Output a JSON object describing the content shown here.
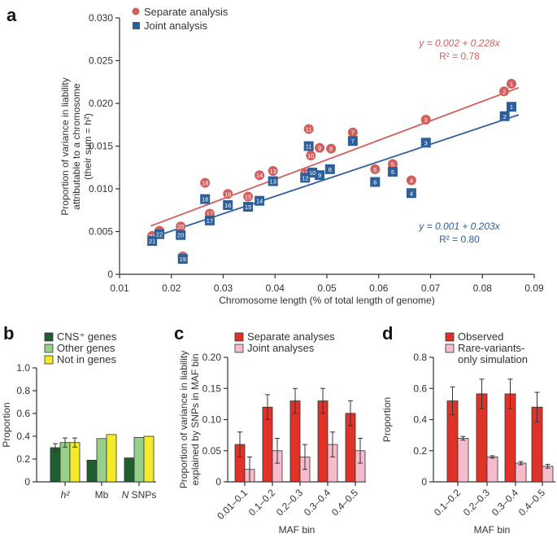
{
  "colors": {
    "separate": "#d0605e",
    "joint": "#2d5f9a",
    "cns": "#1f5e2e",
    "other_genes": "#97d08b",
    "not_in_genes": "#f2ea2a",
    "red_bar": "#e03228",
    "pink_bar": "#f5bccb",
    "axis": "#333333"
  },
  "chart_data": [
    {
      "id": "a",
      "panel_letter": "a",
      "type": "scatter",
      "title": "",
      "xlabel": "Chromosome length (% of total length of genome)",
      "ylabel_lines": [
        "Proportion of variance in liability",
        "attributable to a chromosome",
        "(their sum = h²)"
      ],
      "xlim": [
        0.01,
        0.09
      ],
      "ylim": [
        0,
        0.03
      ],
      "xticks": [
        0.01,
        0.02,
        0.03,
        0.04,
        0.05,
        0.06,
        0.07,
        0.08,
        0.09
      ],
      "xtick_labels": [
        "0.01",
        "0.02",
        "0.03",
        "0.04",
        "0.05",
        "0.06",
        "0.07",
        "0.08",
        "0.09"
      ],
      "yticks": [
        0,
        0.005,
        0.01,
        0.015,
        0.02,
        0.025,
        0.03
      ],
      "ytick_labels": [
        "0",
        "0.005",
        "0.010",
        "0.015",
        "0.020",
        "0.025",
        "0.030"
      ],
      "legend": {
        "placement": "top-left",
        "entries": [
          "Separate analysis",
          "Joint analysis"
        ]
      },
      "grid": false,
      "series": [
        {
          "name": "Separate analysis",
          "marker": "circle",
          "fit": {
            "intercept": 0.002,
            "slope": 0.228,
            "x_range": [
              0.016,
              0.087
            ],
            "equation": "y = 0.002 + 0.228x",
            "r2_label": "R² = 0.78"
          },
          "points": [
            {
              "label": "1",
              "x": 0.0856,
              "y": 0.0223
            },
            {
              "label": "2",
              "x": 0.0842,
              "y": 0.0214
            },
            {
              "label": "3",
              "x": 0.0691,
              "y": 0.0181
            },
            {
              "label": "4",
              "x": 0.0663,
              "y": 0.011
            },
            {
              "label": "5",
              "x": 0.0627,
              "y": 0.0129
            },
            {
              "label": "6",
              "x": 0.0593,
              "y": 0.0123
            },
            {
              "label": "7",
              "x": 0.055,
              "y": 0.0166
            },
            {
              "label": "8",
              "x": 0.0508,
              "y": 0.0147
            },
            {
              "label": "9",
              "x": 0.0486,
              "y": 0.0148
            },
            {
              "label": "10",
              "x": 0.0469,
              "y": 0.0139
            },
            {
              "label": "11",
              "x": 0.0465,
              "y": 0.017
            },
            {
              "label": "12",
              "x": 0.0458,
              "y": 0.0118
            },
            {
              "label": "13",
              "x": 0.0396,
              "y": 0.0121
            },
            {
              "label": "14",
              "x": 0.037,
              "y": 0.0116
            },
            {
              "label": "15",
              "x": 0.0348,
              "y": 0.0091
            },
            {
              "label": "16",
              "x": 0.0309,
              "y": 0.0094
            },
            {
              "label": "17",
              "x": 0.0274,
              "y": 0.0071
            },
            {
              "label": "18",
              "x": 0.0265,
              "y": 0.0107
            },
            {
              "label": "19",
              "x": 0.0222,
              "y": 0.0021
            },
            {
              "label": "20",
              "x": 0.0218,
              "y": 0.0056
            },
            {
              "label": "21",
              "x": 0.0163,
              "y": 0.0045
            },
            {
              "label": "22",
              "x": 0.0177,
              "y": 0.0051
            }
          ]
        },
        {
          "name": "Joint analysis",
          "marker": "square",
          "fit": {
            "intercept": 0.001,
            "slope": 0.203,
            "x_range": [
              0.016,
              0.087
            ],
            "equation": "y = 0.001 + 0.203x",
            "r2_label": "R² = 0.80"
          },
          "points": [
            {
              "label": "1",
              "x": 0.0856,
              "y": 0.0196
            },
            {
              "label": "2",
              "x": 0.0843,
              "y": 0.0185
            },
            {
              "label": "3",
              "x": 0.0691,
              "y": 0.0154
            },
            {
              "label": "4",
              "x": 0.0663,
              "y": 0.0095
            },
            {
              "label": "5",
              "x": 0.0627,
              "y": 0.012
            },
            {
              "label": "6",
              "x": 0.0593,
              "y": 0.0108
            },
            {
              "label": "7",
              "x": 0.055,
              "y": 0.0156
            },
            {
              "label": "8",
              "x": 0.0506,
              "y": 0.0123
            },
            {
              "label": "9",
              "x": 0.0486,
              "y": 0.0116
            },
            {
              "label": "10",
              "x": 0.0472,
              "y": 0.0119
            },
            {
              "label": "11",
              "x": 0.0465,
              "y": 0.015
            },
            {
              "label": "12",
              "x": 0.0458,
              "y": 0.0113
            },
            {
              "label": "13",
              "x": 0.0396,
              "y": 0.0109
            },
            {
              "label": "14",
              "x": 0.037,
              "y": 0.0086
            },
            {
              "label": "15",
              "x": 0.0348,
              "y": 0.0079
            },
            {
              "label": "16",
              "x": 0.0309,
              "y": 0.0081
            },
            {
              "label": "17",
              "x": 0.0274,
              "y": 0.0063
            },
            {
              "label": "18",
              "x": 0.0265,
              "y": 0.0088
            },
            {
              "label": "19",
              "x": 0.0222,
              "y": 0.0018
            },
            {
              "label": "20",
              "x": 0.0218,
              "y": 0.0046
            },
            {
              "label": "21",
              "x": 0.0163,
              "y": 0.0039
            },
            {
              "label": "22",
              "x": 0.0177,
              "y": 0.0047
            }
          ]
        }
      ]
    },
    {
      "id": "b",
      "panel_letter": "b",
      "type": "bar",
      "ylabel": "Proportion",
      "xlabel": "",
      "ylim": [
        0,
        1.0
      ],
      "yticks": [
        0,
        0.2,
        0.4,
        0.6,
        0.8,
        1.0
      ],
      "ytick_labels": [
        "0",
        "0.2",
        "0.4",
        "0.6",
        "0.8",
        "1.0"
      ],
      "categories": [
        "h²",
        "Mb",
        "N SNPs"
      ],
      "legend": {
        "placement": "top",
        "entries": [
          "CNS⁺ genes",
          "Other genes",
          "Not in genes"
        ]
      },
      "series": [
        {
          "name": "CNS⁺ genes",
          "color_key": "cns",
          "values": [
            0.3,
            0.19,
            0.21
          ],
          "errors": [
            0.035,
            null,
            null
          ]
        },
        {
          "name": "Other genes",
          "color_key": "other_genes",
          "values": [
            0.345,
            0.38,
            0.39
          ],
          "errors": [
            0.04,
            null,
            null
          ]
        },
        {
          "name": "Not in genes",
          "color_key": "not_in_genes",
          "values": [
            0.345,
            0.415,
            0.4
          ],
          "errors": [
            0.04,
            null,
            null
          ]
        }
      ]
    },
    {
      "id": "c",
      "panel_letter": "c",
      "type": "bar",
      "ylabel_lines": [
        "Proportion of variance in liability",
        "explained by SNPs in MAF bin"
      ],
      "xlabel": "MAF bin",
      "ylim": [
        0,
        0.2
      ],
      "yticks": [
        0,
        0.05,
        0.1,
        0.15,
        0.2
      ],
      "ytick_labels": [
        "0",
        "0.05",
        "0.10",
        "0.15",
        "0.20"
      ],
      "categories": [
        "0.01–0.1",
        "0.1–0.2",
        "0.2–0.3",
        "0.3–0.4",
        "0.4–0.5"
      ],
      "legend": {
        "placement": "top",
        "entries": [
          "Separate analyses",
          "Joint analyses"
        ]
      },
      "series": [
        {
          "name": "Separate analyses",
          "color_key": "red_bar",
          "values": [
            0.06,
            0.12,
            0.13,
            0.13,
            0.11
          ],
          "errors": [
            0.02,
            0.02,
            0.02,
            0.02,
            0.02
          ]
        },
        {
          "name": "Joint analyses",
          "color_key": "pink_bar",
          "values": [
            0.02,
            0.05,
            0.04,
            0.06,
            0.05
          ],
          "errors": [
            0.02,
            0.02,
            0.02,
            0.02,
            0.02
          ]
        }
      ]
    },
    {
      "id": "d",
      "panel_letter": "d",
      "type": "bar",
      "ylabel": "Proportion",
      "xlabel": "MAF bin",
      "ylim": [
        0,
        0.8
      ],
      "yticks": [
        0,
        0.2,
        0.4,
        0.6,
        0.8
      ],
      "ytick_labels": [
        "0",
        "0.2",
        "0.4",
        "0.6",
        "0.8"
      ],
      "categories": [
        "0.1–0.2",
        "0.2–0.3",
        "0.3–0.4",
        "0.4–0.5"
      ],
      "legend": {
        "placement": "top",
        "entries": [
          "Observed",
          "Rare-variants-",
          "only simulation"
        ]
      },
      "series": [
        {
          "name": "Observed",
          "color_key": "red_bar",
          "values": [
            0.52,
            0.565,
            0.565,
            0.48
          ],
          "errors": [
            0.09,
            0.095,
            0.095,
            0.095
          ]
        },
        {
          "name": "Rare-variants-only simulation",
          "color_key": "pink_bar",
          "values": [
            0.28,
            0.16,
            0.12,
            0.1
          ],
          "errors": [
            0.012,
            0.008,
            0.01,
            0.012
          ]
        }
      ]
    }
  ]
}
